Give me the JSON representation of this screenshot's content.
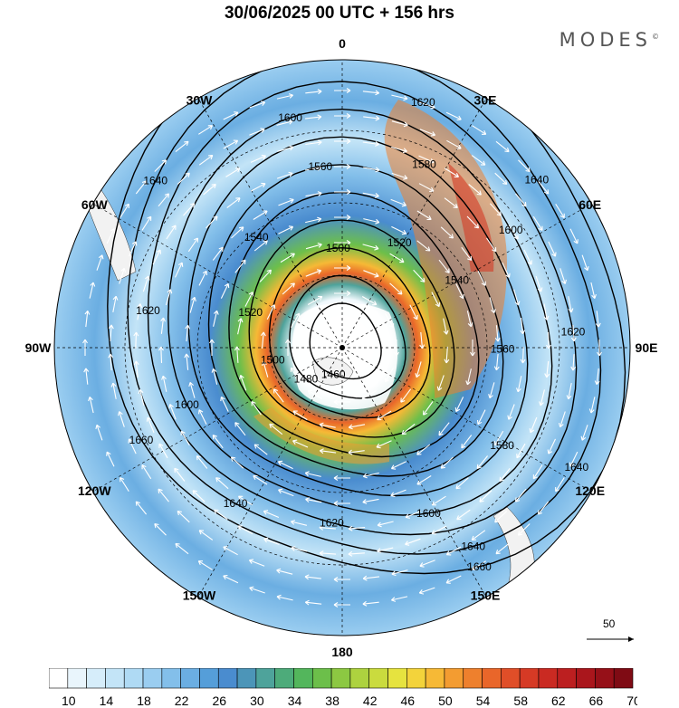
{
  "header": {
    "title": "30/06/2025  00 UTC  + 156 hrs",
    "brand": "MODES",
    "brand_mark": "©"
  },
  "map": {
    "projection": "polar stereographic (south pole)",
    "longitude_labels": [
      {
        "text": "0",
        "lon": 0
      },
      {
        "text": "30E",
        "lon": 30
      },
      {
        "text": "60E",
        "lon": 60
      },
      {
        "text": "90E",
        "lon": 90
      },
      {
        "text": "120E",
        "lon": 120
      },
      {
        "text": "150E",
        "lon": 150
      },
      {
        "text": "180",
        "lon": 180
      },
      {
        "text": "150W",
        "lon": -150
      },
      {
        "text": "120W",
        "lon": -120
      },
      {
        "text": "90W",
        "lon": -90
      },
      {
        "text": "60W",
        "lon": -60
      },
      {
        "text": "30W",
        "lon": -30
      }
    ],
    "contour_labels": [
      {
        "text": "1460",
        "value": 1460
      },
      {
        "text": "1480",
        "value": 1480
      },
      {
        "text": "1500",
        "value": 1500
      },
      {
        "text": "1500",
        "value": 1500
      },
      {
        "text": "1520",
        "value": 1520
      },
      {
        "text": "1520",
        "value": 1520
      },
      {
        "text": "1540",
        "value": 1540
      },
      {
        "text": "1540",
        "value": 1540
      },
      {
        "text": "1560",
        "value": 1560
      },
      {
        "text": "1560",
        "value": 1560
      },
      {
        "text": "1580",
        "value": 1580
      },
      {
        "text": "1580",
        "value": 1580
      },
      {
        "text": "1600",
        "value": 1600
      },
      {
        "text": "1600",
        "value": 1600
      },
      {
        "text": "1600",
        "value": 1600
      },
      {
        "text": "1600",
        "value": 1600
      },
      {
        "text": "1620",
        "value": 1620
      },
      {
        "text": "1620",
        "value": 1620
      },
      {
        "text": "1620",
        "value": 1620
      },
      {
        "text": "1620",
        "value": 1620
      },
      {
        "text": "1640",
        "value": 1640
      },
      {
        "text": "1640",
        "value": 1640
      },
      {
        "text": "1640",
        "value": 1640
      },
      {
        "text": "1640",
        "value": 1640
      },
      {
        "text": "1640",
        "value": 1640
      },
      {
        "text": "1660",
        "value": 1660
      },
      {
        "text": "1660",
        "value": 1660
      }
    ],
    "wind_scale_label": "50"
  },
  "colorbar": {
    "tick_labels": [
      "10",
      "14",
      "18",
      "22",
      "26",
      "30",
      "34",
      "38",
      "42",
      "46",
      "50",
      "54",
      "58",
      "62",
      "66",
      "70"
    ],
    "colors": [
      "#ffffff",
      "#e9f5fc",
      "#d6edfa",
      "#c3e4f7",
      "#afdaf4",
      "#9acdf0",
      "#83bfea",
      "#6baee2",
      "#559ed9",
      "#4a8ccf",
      "#4c95b8",
      "#4ea39b",
      "#4dab7a",
      "#53b65c",
      "#6cbf4a",
      "#8cc842",
      "#add23f",
      "#cadb3e",
      "#e6e33f",
      "#f3d33b",
      "#f6b936",
      "#f39c31",
      "#ee802d",
      "#e9662a",
      "#e04e28",
      "#d63a25",
      "#ca2a22",
      "#bc1f20",
      "#aa161c",
      "#961018",
      "#7f0b14"
    ]
  },
  "chart_data": {
    "type": "heatmap",
    "variable": "wind speed (shaded) with geopotential height contours and wind vectors",
    "valid_time": "30/06/2025 00 UTC",
    "forecast_step": "+ 156 hrs",
    "colorbar_range": [
      10,
      70
    ],
    "colorbar_ticks": [
      10,
      14,
      18,
      22,
      26,
      30,
      34,
      38,
      42,
      46,
      50,
      54,
      58,
      62,
      66,
      70
    ],
    "contour_levels": [
      1460,
      1480,
      1500,
      1520,
      1540,
      1560,
      1580,
      1600,
      1620,
      1640,
      1660
    ],
    "jet_max_sector": "30E-60E",
    "reference_vector": 50
  }
}
